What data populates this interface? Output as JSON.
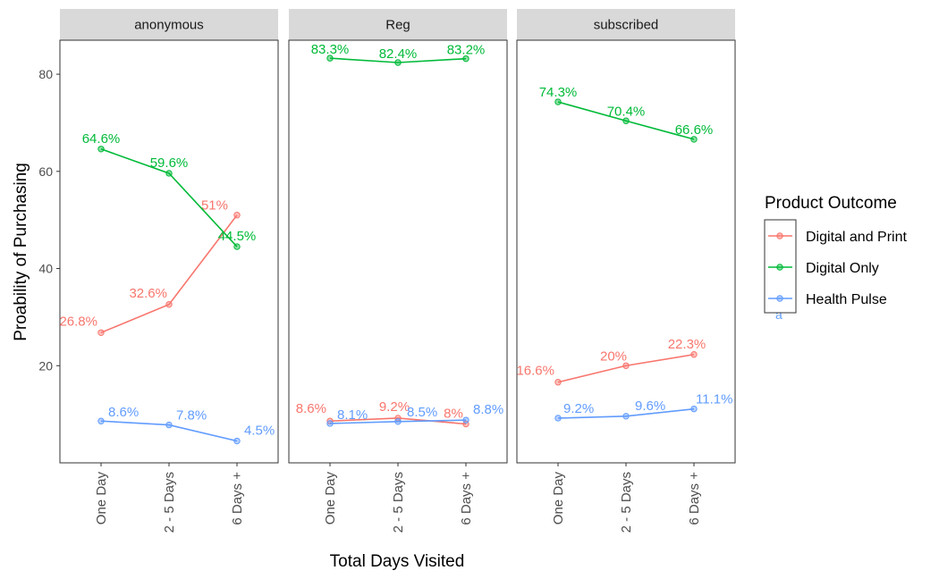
{
  "chart_data": {
    "type": "line",
    "ylabel": "Proability of Purchasing",
    "xlabel": "Total Days Visited",
    "categories": [
      "One Day",
      "2 - 5 Days",
      "6 Days +"
    ],
    "ylim": [
      0,
      87
    ],
    "yticks": [
      20,
      40,
      60,
      80
    ],
    "grid": false,
    "legend": {
      "title": "Product Outcome",
      "position": "right",
      "entries": [
        "Digital and Print",
        "Digital Only",
        "Health Pulse"
      ],
      "stray_text": "a"
    },
    "colors": {
      "Digital and Print": "#F8766D",
      "Digital Only": "#00BA38",
      "Health Pulse": "#619CFF"
    },
    "panels": [
      {
        "name": "anonymous",
        "series": [
          {
            "name": "Digital and Print",
            "values": [
              26.8,
              32.6,
              51.0
            ],
            "labels": [
              "26.8%",
              "32.6%",
              "51%"
            ]
          },
          {
            "name": "Digital Only",
            "values": [
              64.6,
              59.6,
              44.5
            ],
            "labels": [
              "64.6%",
              "59.6%",
              "44.5%"
            ]
          },
          {
            "name": "Health Pulse",
            "values": [
              8.6,
              7.8,
              4.5
            ],
            "labels": [
              "8.6%",
              "7.8%",
              "4.5%"
            ]
          }
        ]
      },
      {
        "name": "Reg",
        "series": [
          {
            "name": "Digital and Print",
            "values": [
              8.6,
              9.2,
              8.0
            ],
            "labels": [
              "8.6%",
              "9.2%",
              "8%"
            ]
          },
          {
            "name": "Digital Only",
            "values": [
              83.3,
              82.4,
              83.2
            ],
            "labels": [
              "83.3%",
              "82.4%",
              "83.2%"
            ]
          },
          {
            "name": "Health Pulse",
            "values": [
              8.1,
              8.5,
              8.8
            ],
            "labels": [
              "8.1%",
              "8.5%",
              "8.8%"
            ]
          }
        ]
      },
      {
        "name": "subscribed",
        "series": [
          {
            "name": "Digital and Print",
            "values": [
              16.6,
              20.0,
              22.3
            ],
            "labels": [
              "16.6%",
              "20%",
              "22.3%"
            ]
          },
          {
            "name": "Digital Only",
            "values": [
              74.3,
              70.4,
              66.6
            ],
            "labels": [
              "74.3%",
              "70.4%",
              "66.6%"
            ]
          },
          {
            "name": "Health Pulse",
            "values": [
              9.2,
              9.6,
              11.1
            ],
            "labels": [
              "9.2%",
              "9.6%",
              "11.1%"
            ]
          }
        ]
      }
    ]
  }
}
